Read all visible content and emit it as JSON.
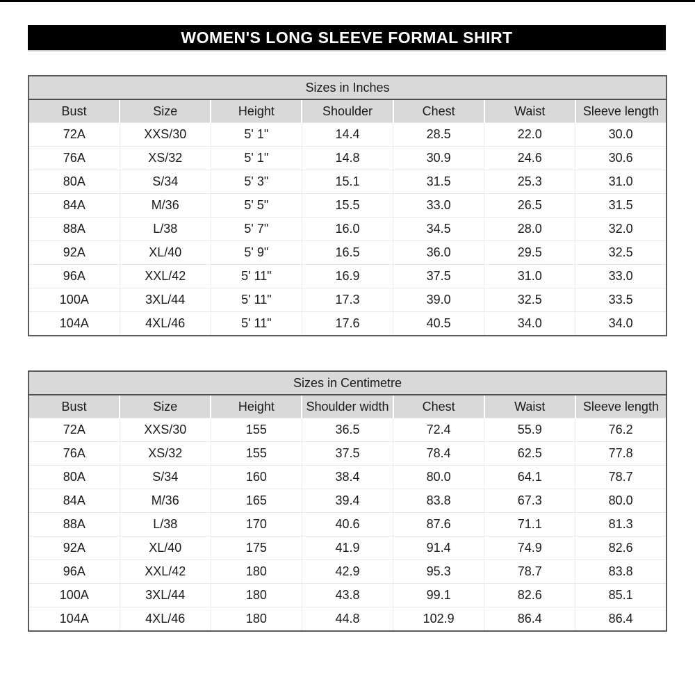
{
  "page": {
    "title": "WOMEN'S LONG SLEEVE FORMAL SHIRT",
    "colors": {
      "title_bar_bg": "#000000",
      "title_bar_text": "#ffffff",
      "header_row_bg": "#d9d9d9",
      "table_border": "#595959",
      "grid_line": "#e8e8e8"
    }
  },
  "tables": [
    {
      "title": "Sizes in Inches",
      "headers": [
        "Bust",
        "Size",
        "Height",
        "Shoulder",
        "Chest",
        "Waist",
        "Sleeve length"
      ],
      "rows": [
        [
          "72A",
          "XXS/30",
          "5' 1\"",
          "14.4",
          "28.5",
          "22.0",
          "30.0"
        ],
        [
          "76A",
          "XS/32",
          "5' 1\"",
          "14.8",
          "30.9",
          "24.6",
          "30.6"
        ],
        [
          "80A",
          "S/34",
          "5' 3\"",
          "15.1",
          "31.5",
          "25.3",
          "31.0"
        ],
        [
          "84A",
          "M/36",
          "5' 5\"",
          "15.5",
          "33.0",
          "26.5",
          "31.5"
        ],
        [
          "88A",
          "L/38",
          "5' 7\"",
          "16.0",
          "34.5",
          "28.0",
          "32.0"
        ],
        [
          "92A",
          "XL/40",
          "5' 9\"",
          "16.5",
          "36.0",
          "29.5",
          "32.5"
        ],
        [
          "96A",
          "XXL/42",
          "5' 11\"",
          "16.9",
          "37.5",
          "31.0",
          "33.0"
        ],
        [
          "100A",
          "3XL/44",
          "5' 11\"",
          "17.3",
          "39.0",
          "32.5",
          "33.5"
        ],
        [
          "104A",
          "4XL/46",
          "5' 11\"",
          "17.6",
          "40.5",
          "34.0",
          "34.0"
        ]
      ]
    },
    {
      "title": "Sizes in Centimetre",
      "headers": [
        "Bust",
        "Size",
        "Height",
        "Shoulder width",
        "Chest",
        "Waist",
        "Sleeve length"
      ],
      "rows": [
        [
          "72A",
          "XXS/30",
          "155",
          "36.5",
          "72.4",
          "55.9",
          "76.2"
        ],
        [
          "76A",
          "XS/32",
          "155",
          "37.5",
          "78.4",
          "62.5",
          "77.8"
        ],
        [
          "80A",
          "S/34",
          "160",
          "38.4",
          "80.0",
          "64.1",
          "78.7"
        ],
        [
          "84A",
          "M/36",
          "165",
          "39.4",
          "83.8",
          "67.3",
          "80.0"
        ],
        [
          "88A",
          "L/38",
          "170",
          "40.6",
          "87.6",
          "71.1",
          "81.3"
        ],
        [
          "92A",
          "XL/40",
          "175",
          "41.9",
          "91.4",
          "74.9",
          "82.6"
        ],
        [
          "96A",
          "XXL/42",
          "180",
          "42.9",
          "95.3",
          "78.7",
          "83.8"
        ],
        [
          "100A",
          "3XL/44",
          "180",
          "43.8",
          "99.1",
          "82.6",
          "85.1"
        ],
        [
          "104A",
          "4XL/46",
          "180",
          "44.8",
          "102.9",
          "86.4",
          "86.4"
        ]
      ]
    }
  ]
}
